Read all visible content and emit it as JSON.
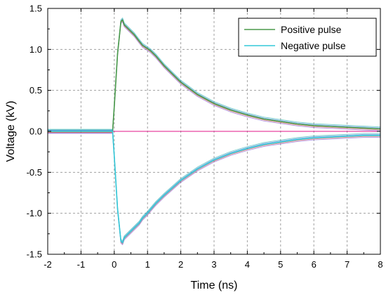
{
  "chart_data": {
    "type": "line",
    "title": "",
    "xlabel": "Time (ns)",
    "ylabel": "Voltage (kV)",
    "xlim": [
      -2,
      8
    ],
    "ylim": [
      -1.5,
      1.5
    ],
    "xticks": [
      -2,
      -1,
      0,
      1,
      2,
      3,
      4,
      5,
      6,
      7,
      8
    ],
    "yticks": [
      -1.5,
      -1.0,
      -0.5,
      0.0,
      0.5,
      1.0,
      1.5
    ],
    "xtick_labels": [
      "-2",
      "-1",
      "0",
      "1",
      "2",
      "3",
      "4",
      "5",
      "6",
      "7",
      "8"
    ],
    "ytick_labels": [
      "-1.5",
      "-1.0",
      "-0.5",
      "0.0",
      "0.5",
      "1.0",
      "1.5"
    ],
    "grid": true,
    "legend_position": "top-right",
    "reference_line": {
      "y": 0,
      "color": "#e0168a"
    },
    "series": [
      {
        "name": "Positive pulse",
        "color": "#4a9a4a",
        "x": [
          -2.0,
          -1.5,
          -1.0,
          -0.5,
          -0.05,
          0.0,
          0.1,
          0.2,
          0.25,
          0.3,
          0.45,
          0.6,
          0.75,
          0.85,
          1.0,
          1.1,
          1.25,
          1.5,
          2.0,
          2.5,
          3.0,
          3.5,
          4.0,
          4.5,
          5.0,
          5.5,
          6.0,
          6.5,
          7.0,
          7.5,
          8.0
        ],
        "y": [
          0.0,
          0.0,
          0.0,
          0.0,
          0.0,
          0.3,
          0.95,
          1.34,
          1.36,
          1.3,
          1.24,
          1.18,
          1.1,
          1.05,
          1.01,
          0.98,
          0.92,
          0.8,
          0.6,
          0.45,
          0.34,
          0.26,
          0.2,
          0.15,
          0.12,
          0.09,
          0.07,
          0.06,
          0.05,
          0.04,
          0.03
        ]
      },
      {
        "name": "Negative pulse",
        "color": "#33c8d8",
        "x": [
          -2.0,
          -1.5,
          -1.0,
          -0.5,
          -0.05,
          0.0,
          0.1,
          0.2,
          0.25,
          0.3,
          0.45,
          0.6,
          0.75,
          0.85,
          1.0,
          1.1,
          1.25,
          1.5,
          2.0,
          2.5,
          3.0,
          3.5,
          4.0,
          4.5,
          5.0,
          5.5,
          6.0,
          6.5,
          7.0,
          7.5,
          8.0
        ],
        "y": [
          0.0,
          0.0,
          0.0,
          0.0,
          0.0,
          -0.3,
          -0.95,
          -1.34,
          -1.36,
          -1.3,
          -1.24,
          -1.18,
          -1.12,
          -1.06,
          -1.0,
          -0.95,
          -0.88,
          -0.78,
          -0.6,
          -0.46,
          -0.35,
          -0.27,
          -0.21,
          -0.16,
          -0.13,
          -0.1,
          -0.08,
          -0.07,
          -0.06,
          -0.05,
          -0.05
        ]
      }
    ]
  }
}
